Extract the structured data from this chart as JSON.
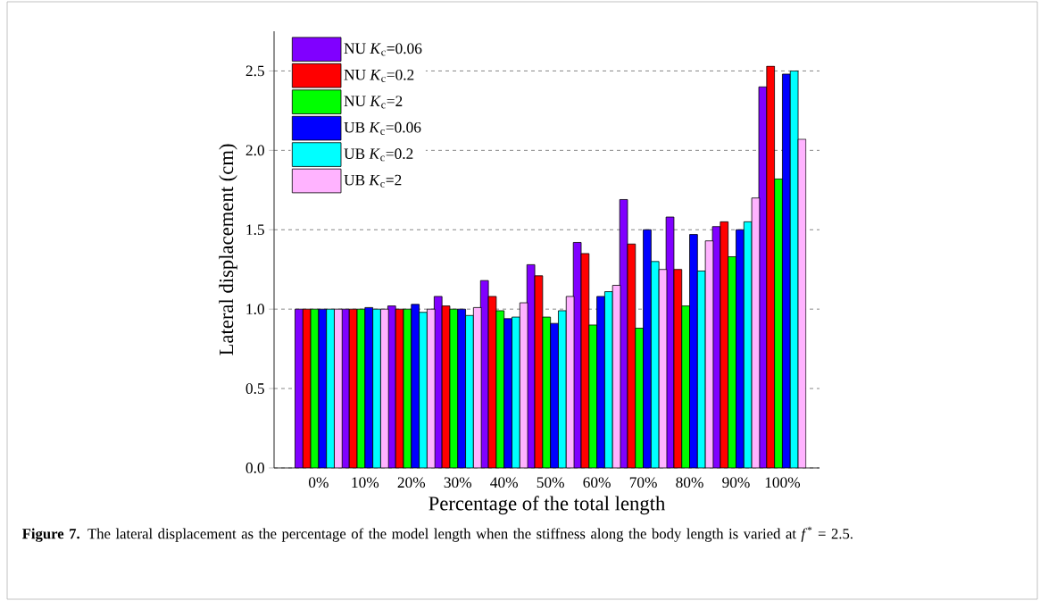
{
  "chart_data": {
    "type": "bar",
    "xlabel": "Percentage of the total length",
    "ylabel": "Lateral displacement (cm)",
    "categories": [
      "0%",
      "10%",
      "20%",
      "30%",
      "40%",
      "50%",
      "60%",
      "70%",
      "80%",
      "90%",
      "100%"
    ],
    "series": [
      {
        "name": "NU *K*$_{c}$=0.06",
        "color": "#8000ff",
        "values": [
          1.0,
          1.0,
          1.02,
          1.08,
          1.18,
          1.28,
          1.42,
          1.69,
          1.58,
          1.52,
          2.4
        ]
      },
      {
        "name": "NU *K*$_{c}$=0.2",
        "color": "#ff0000",
        "values": [
          1.0,
          1.0,
          1.0,
          1.02,
          1.08,
          1.21,
          1.35,
          1.41,
          1.25,
          1.55,
          2.53
        ]
      },
      {
        "name": "NU *K*$_{c}$=2",
        "color": "#00ff00",
        "values": [
          1.0,
          1.0,
          1.0,
          1.0,
          0.99,
          0.95,
          0.9,
          0.88,
          1.02,
          1.33,
          1.82
        ]
      },
      {
        "name": "UB *K*$_{c}$=0.06",
        "color": "#0000ff",
        "values": [
          1.0,
          1.01,
          1.03,
          1.0,
          0.94,
          0.91,
          1.08,
          1.5,
          1.47,
          1.5,
          2.48
        ]
      },
      {
        "name": "UB *K*$_{c}$=0.2",
        "color": "#00ffff",
        "values": [
          1.0,
          1.0,
          0.98,
          0.96,
          0.95,
          0.99,
          1.11,
          1.3,
          1.24,
          1.55,
          2.5
        ]
      },
      {
        "name": "UB *K*$_{c}$=2",
        "color": "#ffb3ff",
        "values": [
          1.0,
          1.0,
          1.0,
          1.01,
          1.04,
          1.08,
          1.15,
          1.25,
          1.43,
          1.7,
          2.07
        ]
      }
    ],
    "ylim": [
      0,
      2.75
    ],
    "yticks": [
      {
        "value": 0,
        "label": "0.0"
      },
      {
        "value": 0.5,
        "label": "0.5"
      },
      {
        "value": 1,
        "label": "1.0"
      },
      {
        "value": 1.5,
        "label": "1.5"
      },
      {
        "value": 2,
        "label": "2.0"
      },
      {
        "value": 2.5,
        "label": "2.5"
      }
    ],
    "grid": "y",
    "legend": "top left",
    "annotations": [
      "**Figure 7.** The lateral displacement as the percentage of the model length when the stiffness along the body length is varied at *f*$^{*}$ = 2.5."
    ]
  }
}
